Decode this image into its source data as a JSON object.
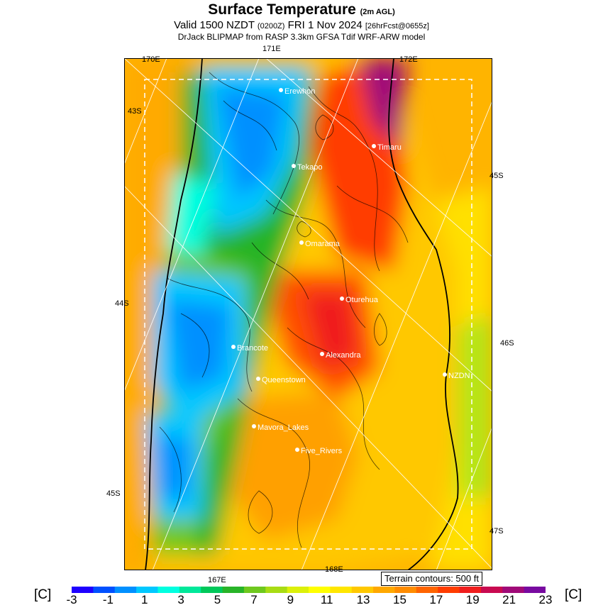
{
  "header": {
    "title": "Surface Temperature",
    "title_suffix": "(2m AGL)",
    "valid_pre": "Valid 1500 NZDT",
    "valid_z": "(0200Z)",
    "valid_date": "FRI 1 Nov 2024",
    "fcst": "[26hrFcst@0655z]",
    "model": "DrJack BLIPMAP from RASP 3.3km GFSA Tdif WRF-ARW model"
  },
  "grid_labels": {
    "top_170e": "170E",
    "top_171e": "171E",
    "top_172e": "172E",
    "left_43s": "43S",
    "left_44s": "44S",
    "left_45s": "45S",
    "right_45s": "45S",
    "right_46s": "46S",
    "right_47s": "47S",
    "bottom_167e": "167E",
    "bottom_168e": "168E"
  },
  "places": [
    {
      "name": "Erewhon"
    },
    {
      "name": "Timaru"
    },
    {
      "name": "Tekapo"
    },
    {
      "name": "Omarama"
    },
    {
      "name": "Oturehua"
    },
    {
      "name": "Brancote"
    },
    {
      "name": "Alexandra"
    },
    {
      "name": "NZDN"
    },
    {
      "name": "Queenstown"
    },
    {
      "name": "Mavora_Lakes"
    },
    {
      "name": "Five_Rivers"
    }
  ],
  "terrain_note": "Terrain contours: 500 ft",
  "colorbar": {
    "unit": "[C]",
    "tick_labels": [
      "-3",
      "-1",
      "1",
      "3",
      "5",
      "7",
      "9",
      "11",
      "13",
      "15",
      "17",
      "19",
      "21",
      "23"
    ],
    "colors": [
      "#1e00ff",
      "#0050ff",
      "#0090ff",
      "#00c8ff",
      "#00ffe0",
      "#00e89a",
      "#00c85a",
      "#28b428",
      "#6ec81e",
      "#a8dc14",
      "#dcf00a",
      "#ffff00",
      "#ffe600",
      "#ffc800",
      "#ffa800",
      "#ff8c00",
      "#ff6400",
      "#ff3c00",
      "#f01e1e",
      "#c80a50",
      "#a00a78",
      "#780aa0"
    ]
  }
}
